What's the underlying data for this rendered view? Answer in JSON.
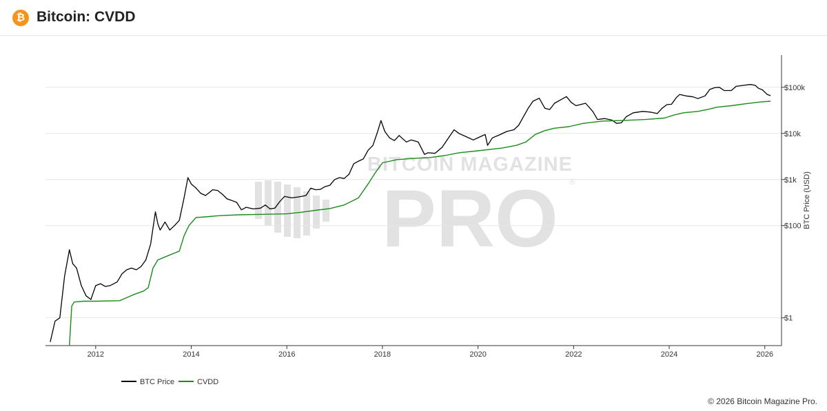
{
  "header": {
    "logo_glyph": "₿",
    "title": "Bitcoin: CVDD"
  },
  "watermark": {
    "line1": "BITCOIN MAGAZINE",
    "line2": "PRO",
    "mark": "®"
  },
  "footer": {
    "copyright": "© 2026 Bitcoin Magazine Pro."
  },
  "colors": {
    "price": "#000000",
    "cvdd": "#1a8a1a",
    "grid": "#e6e6e6",
    "axis": "#333333",
    "watermark": "#e2e2e2"
  },
  "chart_data": {
    "type": "line",
    "title": "Bitcoin: CVDD",
    "xlabel": "",
    "ylabel": "BTC Price (USD)",
    "yscale": "log",
    "xlim": [
      2010.95,
      2026.35
    ],
    "ylim": [
      0.25,
      500000
    ],
    "x_ticks": [
      2012,
      2014,
      2016,
      2018,
      2020,
      2022,
      2024,
      2026
    ],
    "x_tick_labels": [
      "2012",
      "2014",
      "2016",
      "2018",
      "2020",
      "2022",
      "2024",
      "2026"
    ],
    "y_ticks": [
      1,
      100,
      1000,
      10000,
      100000
    ],
    "y_tick_labels": [
      "$1",
      "$100",
      "$1k",
      "$10k",
      "$100k"
    ],
    "legend_position": "bottom-left",
    "series": [
      {
        "name": "BTC Price",
        "color": "#000000",
        "points": [
          [
            2011.05,
            0.3
          ],
          [
            2011.15,
            0.85
          ],
          [
            2011.25,
            1.0
          ],
          [
            2011.35,
            8
          ],
          [
            2011.45,
            30
          ],
          [
            2011.52,
            15
          ],
          [
            2011.6,
            12
          ],
          [
            2011.7,
            5
          ],
          [
            2011.8,
            3
          ],
          [
            2011.9,
            2.5
          ],
          [
            2012.0,
            5
          ],
          [
            2012.1,
            5.5
          ],
          [
            2012.2,
            4.8
          ],
          [
            2012.3,
            5
          ],
          [
            2012.45,
            6
          ],
          [
            2012.55,
            9
          ],
          [
            2012.65,
            11
          ],
          [
            2012.75,
            12
          ],
          [
            2012.85,
            11
          ],
          [
            2012.95,
            13
          ],
          [
            2013.05,
            18
          ],
          [
            2013.15,
            40
          ],
          [
            2013.25,
            200
          ],
          [
            2013.3,
            110
          ],
          [
            2013.35,
            80
          ],
          [
            2013.45,
            120
          ],
          [
            2013.55,
            80
          ],
          [
            2013.65,
            100
          ],
          [
            2013.75,
            130
          ],
          [
            2013.85,
            400
          ],
          [
            2013.93,
            1100
          ],
          [
            2014.0,
            800
          ],
          [
            2014.1,
            650
          ],
          [
            2014.2,
            500
          ],
          [
            2014.3,
            450
          ],
          [
            2014.45,
            600
          ],
          [
            2014.55,
            580
          ],
          [
            2014.65,
            480
          ],
          [
            2014.75,
            380
          ],
          [
            2014.85,
            350
          ],
          [
            2014.95,
            320
          ],
          [
            2015.05,
            220
          ],
          [
            2015.15,
            250
          ],
          [
            2015.3,
            230
          ],
          [
            2015.45,
            240
          ],
          [
            2015.55,
            280
          ],
          [
            2015.65,
            230
          ],
          [
            2015.75,
            240
          ],
          [
            2015.85,
            330
          ],
          [
            2015.95,
            430
          ],
          [
            2016.1,
            400
          ],
          [
            2016.25,
            420
          ],
          [
            2016.4,
            450
          ],
          [
            2016.5,
            650
          ],
          [
            2016.6,
            600
          ],
          [
            2016.7,
            610
          ],
          [
            2016.8,
            700
          ],
          [
            2016.9,
            750
          ],
          [
            2017.0,
            1000
          ],
          [
            2017.1,
            1100
          ],
          [
            2017.2,
            1050
          ],
          [
            2017.3,
            1300
          ],
          [
            2017.4,
            2200
          ],
          [
            2017.5,
            2500
          ],
          [
            2017.6,
            2800
          ],
          [
            2017.7,
            4300
          ],
          [
            2017.8,
            5500
          ],
          [
            2017.9,
            11000
          ],
          [
            2017.97,
            19000
          ],
          [
            2018.05,
            11000
          ],
          [
            2018.15,
            8000
          ],
          [
            2018.25,
            7000
          ],
          [
            2018.35,
            9000
          ],
          [
            2018.5,
            6500
          ],
          [
            2018.6,
            7200
          ],
          [
            2018.75,
            6500
          ],
          [
            2018.88,
            3500
          ],
          [
            2018.95,
            3800
          ],
          [
            2019.1,
            3700
          ],
          [
            2019.25,
            5000
          ],
          [
            2019.4,
            8500
          ],
          [
            2019.5,
            12000
          ],
          [
            2019.6,
            10000
          ],
          [
            2019.75,
            8500
          ],
          [
            2019.9,
            7200
          ],
          [
            2020.05,
            8500
          ],
          [
            2020.15,
            9500
          ],
          [
            2020.2,
            5500
          ],
          [
            2020.3,
            8000
          ],
          [
            2020.45,
            9300
          ],
          [
            2020.6,
            11000
          ],
          [
            2020.75,
            12000
          ],
          [
            2020.85,
            15000
          ],
          [
            2020.95,
            23000
          ],
          [
            2021.05,
            35000
          ],
          [
            2021.15,
            50000
          ],
          [
            2021.28,
            58000
          ],
          [
            2021.4,
            35000
          ],
          [
            2021.5,
            33000
          ],
          [
            2021.6,
            45000
          ],
          [
            2021.75,
            55000
          ],
          [
            2021.85,
            63000
          ],
          [
            2021.95,
            47000
          ],
          [
            2022.05,
            40000
          ],
          [
            2022.25,
            45000
          ],
          [
            2022.4,
            30000
          ],
          [
            2022.5,
            20000
          ],
          [
            2022.65,
            21000
          ],
          [
            2022.8,
            19500
          ],
          [
            2022.9,
            16500
          ],
          [
            2023.0,
            17000
          ],
          [
            2023.1,
            23000
          ],
          [
            2023.25,
            28000
          ],
          [
            2023.45,
            30000
          ],
          [
            2023.6,
            29000
          ],
          [
            2023.75,
            27000
          ],
          [
            2023.85,
            35000
          ],
          [
            2023.95,
            42000
          ],
          [
            2024.05,
            43000
          ],
          [
            2024.15,
            60000
          ],
          [
            2024.22,
            70000
          ],
          [
            2024.35,
            65000
          ],
          [
            2024.5,
            62000
          ],
          [
            2024.6,
            57000
          ],
          [
            2024.75,
            65000
          ],
          [
            2024.85,
            90000
          ],
          [
            2024.95,
            98000
          ],
          [
            2025.05,
            100000
          ],
          [
            2025.15,
            85000
          ],
          [
            2025.3,
            85000
          ],
          [
            2025.4,
            105000
          ],
          [
            2025.55,
            110000
          ],
          [
            2025.7,
            115000
          ],
          [
            2025.8,
            110000
          ],
          [
            2025.87,
            95000
          ],
          [
            2025.95,
            88000
          ],
          [
            2026.05,
            70000
          ],
          [
            2026.12,
            66000
          ]
        ]
      },
      {
        "name": "CVDD",
        "color": "#1a8a1a",
        "points": [
          [
            2011.45,
            0.25
          ],
          [
            2011.5,
            1.8
          ],
          [
            2011.55,
            2.2
          ],
          [
            2011.75,
            2.3
          ],
          [
            2012.0,
            2.3
          ],
          [
            2012.5,
            2.35
          ],
          [
            2012.6,
            2.6
          ],
          [
            2012.8,
            3.2
          ],
          [
            2013.0,
            3.8
          ],
          [
            2013.1,
            4.5
          ],
          [
            2013.2,
            12
          ],
          [
            2013.3,
            18
          ],
          [
            2013.5,
            22
          ],
          [
            2013.75,
            28
          ],
          [
            2013.85,
            60
          ],
          [
            2013.95,
            100
          ],
          [
            2014.1,
            150
          ],
          [
            2014.3,
            155
          ],
          [
            2014.6,
            165
          ],
          [
            2015.0,
            172
          ],
          [
            2015.5,
            176
          ],
          [
            2016.0,
            180
          ],
          [
            2016.3,
            195
          ],
          [
            2016.6,
            215
          ],
          [
            2016.9,
            235
          ],
          [
            2017.2,
            280
          ],
          [
            2017.5,
            400
          ],
          [
            2017.7,
            800
          ],
          [
            2017.85,
            1400
          ],
          [
            2018.0,
            2300
          ],
          [
            2018.3,
            2700
          ],
          [
            2018.7,
            2900
          ],
          [
            2019.0,
            3000
          ],
          [
            2019.3,
            3300
          ],
          [
            2019.6,
            3800
          ],
          [
            2020.0,
            4200
          ],
          [
            2020.5,
            4800
          ],
          [
            2020.8,
            5500
          ],
          [
            2021.0,
            6500
          ],
          [
            2021.2,
            9500
          ],
          [
            2021.4,
            11500
          ],
          [
            2021.6,
            13000
          ],
          [
            2021.9,
            14000
          ],
          [
            2022.2,
            16500
          ],
          [
            2022.6,
            18500
          ],
          [
            2023.0,
            19000
          ],
          [
            2023.5,
            20000
          ],
          [
            2023.9,
            21500
          ],
          [
            2024.1,
            25000
          ],
          [
            2024.3,
            28000
          ],
          [
            2024.6,
            30000
          ],
          [
            2024.8,
            33000
          ],
          [
            2025.0,
            37000
          ],
          [
            2025.3,
            40000
          ],
          [
            2025.6,
            44000
          ],
          [
            2025.9,
            48000
          ],
          [
            2026.12,
            50000
          ]
        ]
      }
    ]
  }
}
